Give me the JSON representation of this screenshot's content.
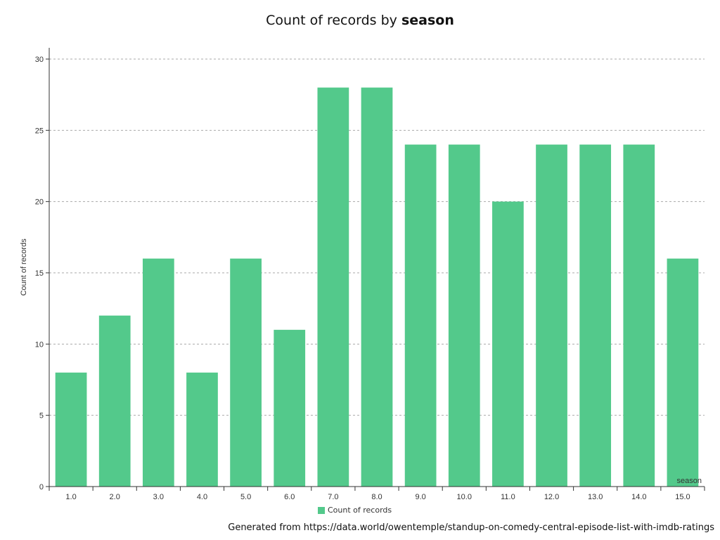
{
  "colors": {
    "bar": "#53c98b",
    "grid": "#aaaaaa",
    "axis": "#333333"
  },
  "chart_data": {
    "type": "bar",
    "title_prefix": "Count of records by ",
    "title_bold": "season",
    "xlabel": "season",
    "ylabel": "Count of records",
    "categories": [
      "1.0",
      "2.0",
      "3.0",
      "4.0",
      "5.0",
      "6.0",
      "7.0",
      "8.0",
      "9.0",
      "10.0",
      "11.0",
      "12.0",
      "13.0",
      "14.0",
      "15.0"
    ],
    "series": [
      {
        "name": "Count of records",
        "values": [
          8,
          12,
          16,
          8,
          16,
          11,
          28,
          28,
          24,
          24,
          20,
          24,
          24,
          24,
          16
        ]
      }
    ],
    "ylim": [
      0,
      30
    ],
    "yticks": [
      0,
      5,
      10,
      15,
      20,
      25,
      30
    ],
    "grid": true,
    "legend": "bottom"
  },
  "footer": "Generated from https://data.world/owentemple/standup-on-comedy-central-episode-list-with-imdb-ratings"
}
